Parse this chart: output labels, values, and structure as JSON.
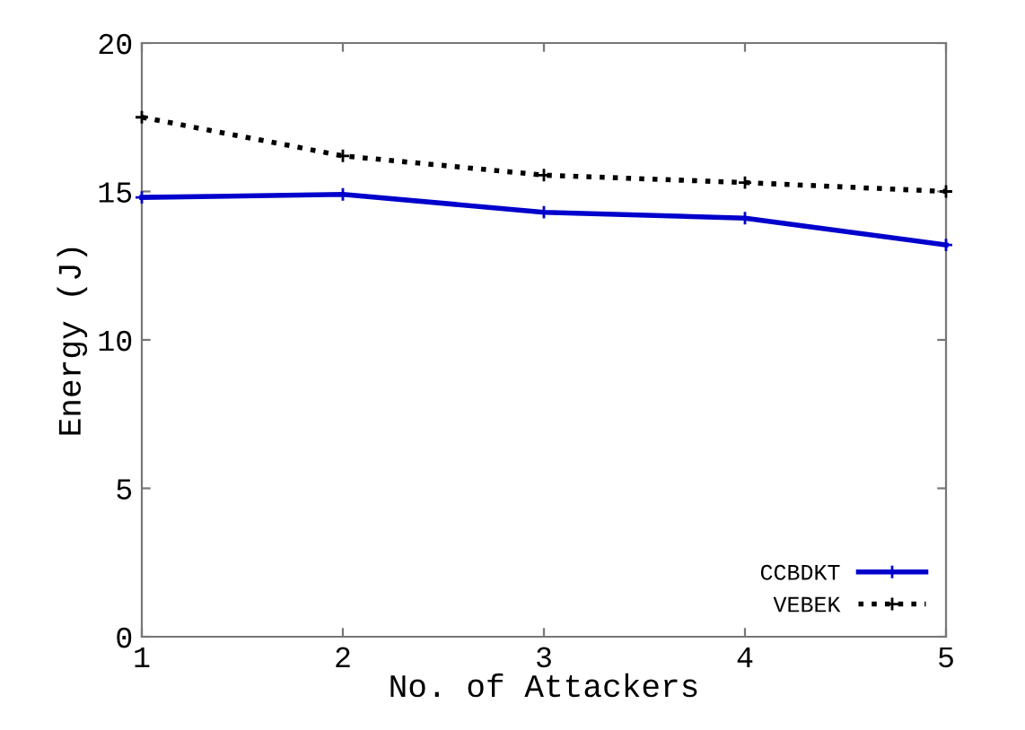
{
  "chart_data": {
    "type": "line",
    "xlabel": "No. of Attackers",
    "ylabel": "Energy (J)",
    "x": [
      1,
      2,
      3,
      4,
      5
    ],
    "xlim": [
      1,
      5
    ],
    "xticks": [
      1,
      2,
      3,
      4,
      5
    ],
    "ylim": [
      0,
      20
    ],
    "yticks": [
      0,
      5,
      10,
      15,
      20
    ],
    "series": [
      {
        "name": "CCBDKT",
        "color": "#0000cc",
        "values": [
          14.8,
          14.9,
          14.3,
          14.1,
          13.2
        ],
        "line_style": "solid",
        "marker": "cross"
      },
      {
        "name": "VEBEK",
        "color": "#000000",
        "values": [
          17.5,
          16.2,
          15.55,
          15.3,
          15.0
        ],
        "line_style": "dotted",
        "marker": "cross"
      }
    ],
    "grid": false,
    "legend": "bottom right"
  }
}
